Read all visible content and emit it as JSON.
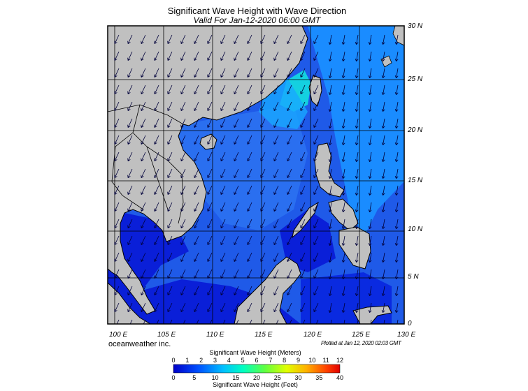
{
  "title": "Significant Wave Height with Wave Direction",
  "subtitle": "Valid For Jan-12-2020 06:00 GMT",
  "lon_labels": [
    "100 E",
    "105 E",
    "110 E",
    "115 E",
    "120 E",
    "125 E",
    "130 E"
  ],
  "lat_labels": [
    "30 N",
    "25 N",
    "20 N",
    "15 N",
    "10 N",
    "5 N",
    "0"
  ],
  "brand": "oceanweather inc.",
  "plotted": "Plotted at Jan 12, 2020 02:03 GMT",
  "colorbar": {
    "title_meters": "Significant Wave Height (Meters)",
    "title_feet": "Significant Wave Height (Feet)",
    "meter_ticks": [
      "0",
      "1",
      "2",
      "3",
      "4",
      "5",
      "6",
      "7",
      "8",
      "9",
      "10",
      "11",
      "12"
    ],
    "feet_ticks": [
      "0",
      "5",
      "10",
      "15",
      "20",
      "25",
      "30",
      "35",
      "40"
    ],
    "colors": [
      "#0000c8",
      "#0020e6",
      "#0050ff",
      "#0090ff",
      "#00d0ff",
      "#00ffd0",
      "#40ff60",
      "#a0ff00",
      "#ffff00",
      "#ffc000",
      "#ff8000",
      "#ff3000",
      "#e00000"
    ]
  },
  "map_extent": {
    "lon_min": 99,
    "lon_max": 130,
    "lat_min": 0,
    "lat_max": 30
  },
  "colors": {
    "land": "#c0c0c0",
    "ocean_deep": "#0a1fd8",
    "ocean_mid": "#1f5ae8",
    "ocean_high": "#1a8cff",
    "ocean_peak": "#14d0e0"
  }
}
